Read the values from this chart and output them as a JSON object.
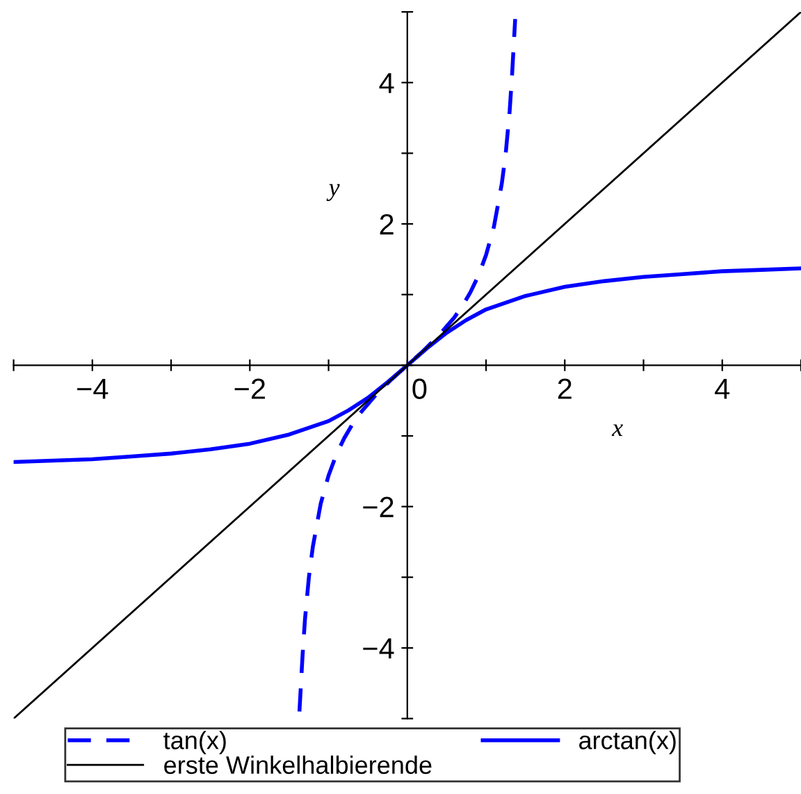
{
  "chart_data": {
    "type": "line",
    "xlabel": "x",
    "ylabel": "y",
    "xlim": [
      -5,
      5
    ],
    "ylim": [
      -5,
      5
    ],
    "xticks": [
      {
        "value": -5,
        "label": null
      },
      -4,
      {
        "value": -3,
        "label": null
      },
      -2,
      {
        "value": -1,
        "label": null
      },
      0,
      {
        "value": 1,
        "label": null
      },
      2,
      {
        "value": 3,
        "label": null
      },
      4,
      {
        "value": 5,
        "label": null
      }
    ],
    "yticks": [
      {
        "value": -5,
        "label": null
      },
      -4,
      {
        "value": -3,
        "label": null
      },
      -2,
      {
        "value": -1,
        "label": null
      },
      {
        "value": 0,
        "label": null
      },
      {
        "value": 1,
        "label": null
      },
      2,
      {
        "value": 3,
        "label": null
      },
      4,
      {
        "value": 5,
        "label": null
      }
    ],
    "grid": false,
    "legend": "bottom",
    "marker": "none",
    "series": [
      {
        "name": "tan(x)",
        "color": "#0000ff",
        "line_style": "dashed",
        "x": [
          -1.37,
          -1.33,
          -1.3,
          -1.25,
          -1.2,
          -1.1,
          -1.0,
          -0.9,
          -0.8,
          -0.7,
          -0.6,
          -0.5,
          -0.4,
          -0.3,
          -0.2,
          -0.1,
          0,
          0.1,
          0.2,
          0.3,
          0.4,
          0.5,
          0.6,
          0.7,
          0.8,
          0.9,
          1.0,
          1.1,
          1.2,
          1.25,
          1.3,
          1.33,
          1.37
        ],
        "values": [
          -4.9,
          -4.1,
          -3.6,
          -3.0,
          -2.57,
          -1.96,
          -1.56,
          -1.26,
          -1.03,
          -0.84,
          -0.68,
          -0.55,
          -0.42,
          -0.31,
          -0.2,
          -0.1,
          0,
          0.1,
          0.2,
          0.31,
          0.42,
          0.55,
          0.68,
          0.84,
          1.03,
          1.26,
          1.56,
          1.96,
          2.57,
          3.0,
          3.6,
          4.1,
          4.9
        ]
      },
      {
        "name": "arctan(x)",
        "color": "#0000ff",
        "line_style": "solid",
        "x": [
          -5,
          -4.5,
          -4,
          -3.5,
          -3,
          -2.5,
          -2,
          -1.5,
          -1,
          -0.75,
          -0.5,
          -0.25,
          0,
          0.25,
          0.5,
          0.75,
          1,
          1.5,
          2,
          2.5,
          3,
          3.5,
          4,
          4.5,
          5
        ],
        "values": [
          -1.37,
          -1.35,
          -1.33,
          -1.29,
          -1.25,
          -1.19,
          -1.11,
          -0.98,
          -0.79,
          -0.64,
          -0.46,
          -0.24,
          0,
          0.24,
          0.46,
          0.64,
          0.79,
          0.98,
          1.11,
          1.19,
          1.25,
          1.29,
          1.33,
          1.35,
          1.37
        ]
      },
      {
        "name": "erste Winkelhalbierende",
        "color": "#000000",
        "line_style": "solid",
        "x": [
          -5,
          5
        ],
        "values": [
          -5,
          5
        ]
      }
    ]
  }
}
